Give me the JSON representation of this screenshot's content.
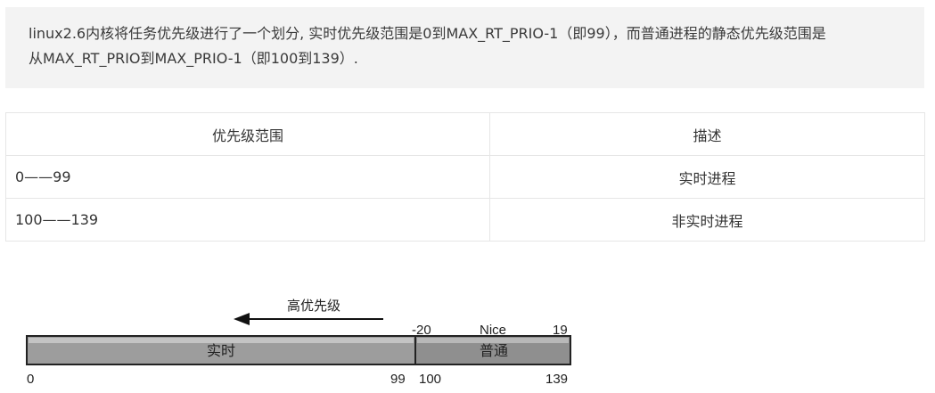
{
  "note": {
    "line1": "linux2.6内核将任务优先级进行了一个划分, 实时优先级范围是0到MAX_RT_PRIO-1（即99），而普通进程的静态优先级范围是",
    "line2": "从MAX_RT_PRIO到MAX_PRIO-1（即100到139）."
  },
  "table": {
    "headers": [
      "优先级范围",
      "描述"
    ],
    "rows": [
      {
        "range": "0——99",
        "desc": "实时进程"
      },
      {
        "range": "100——139",
        "desc": "非实时进程"
      }
    ]
  },
  "diagram": {
    "arrow_label": "高优先级",
    "nice_label": "Nice",
    "nice_min": "-20",
    "nice_max": "19",
    "realtime_label": "实时",
    "normal_label": "普通",
    "tick_0": "0",
    "tick_99": "99",
    "tick_100": "100",
    "tick_139": "139"
  }
}
